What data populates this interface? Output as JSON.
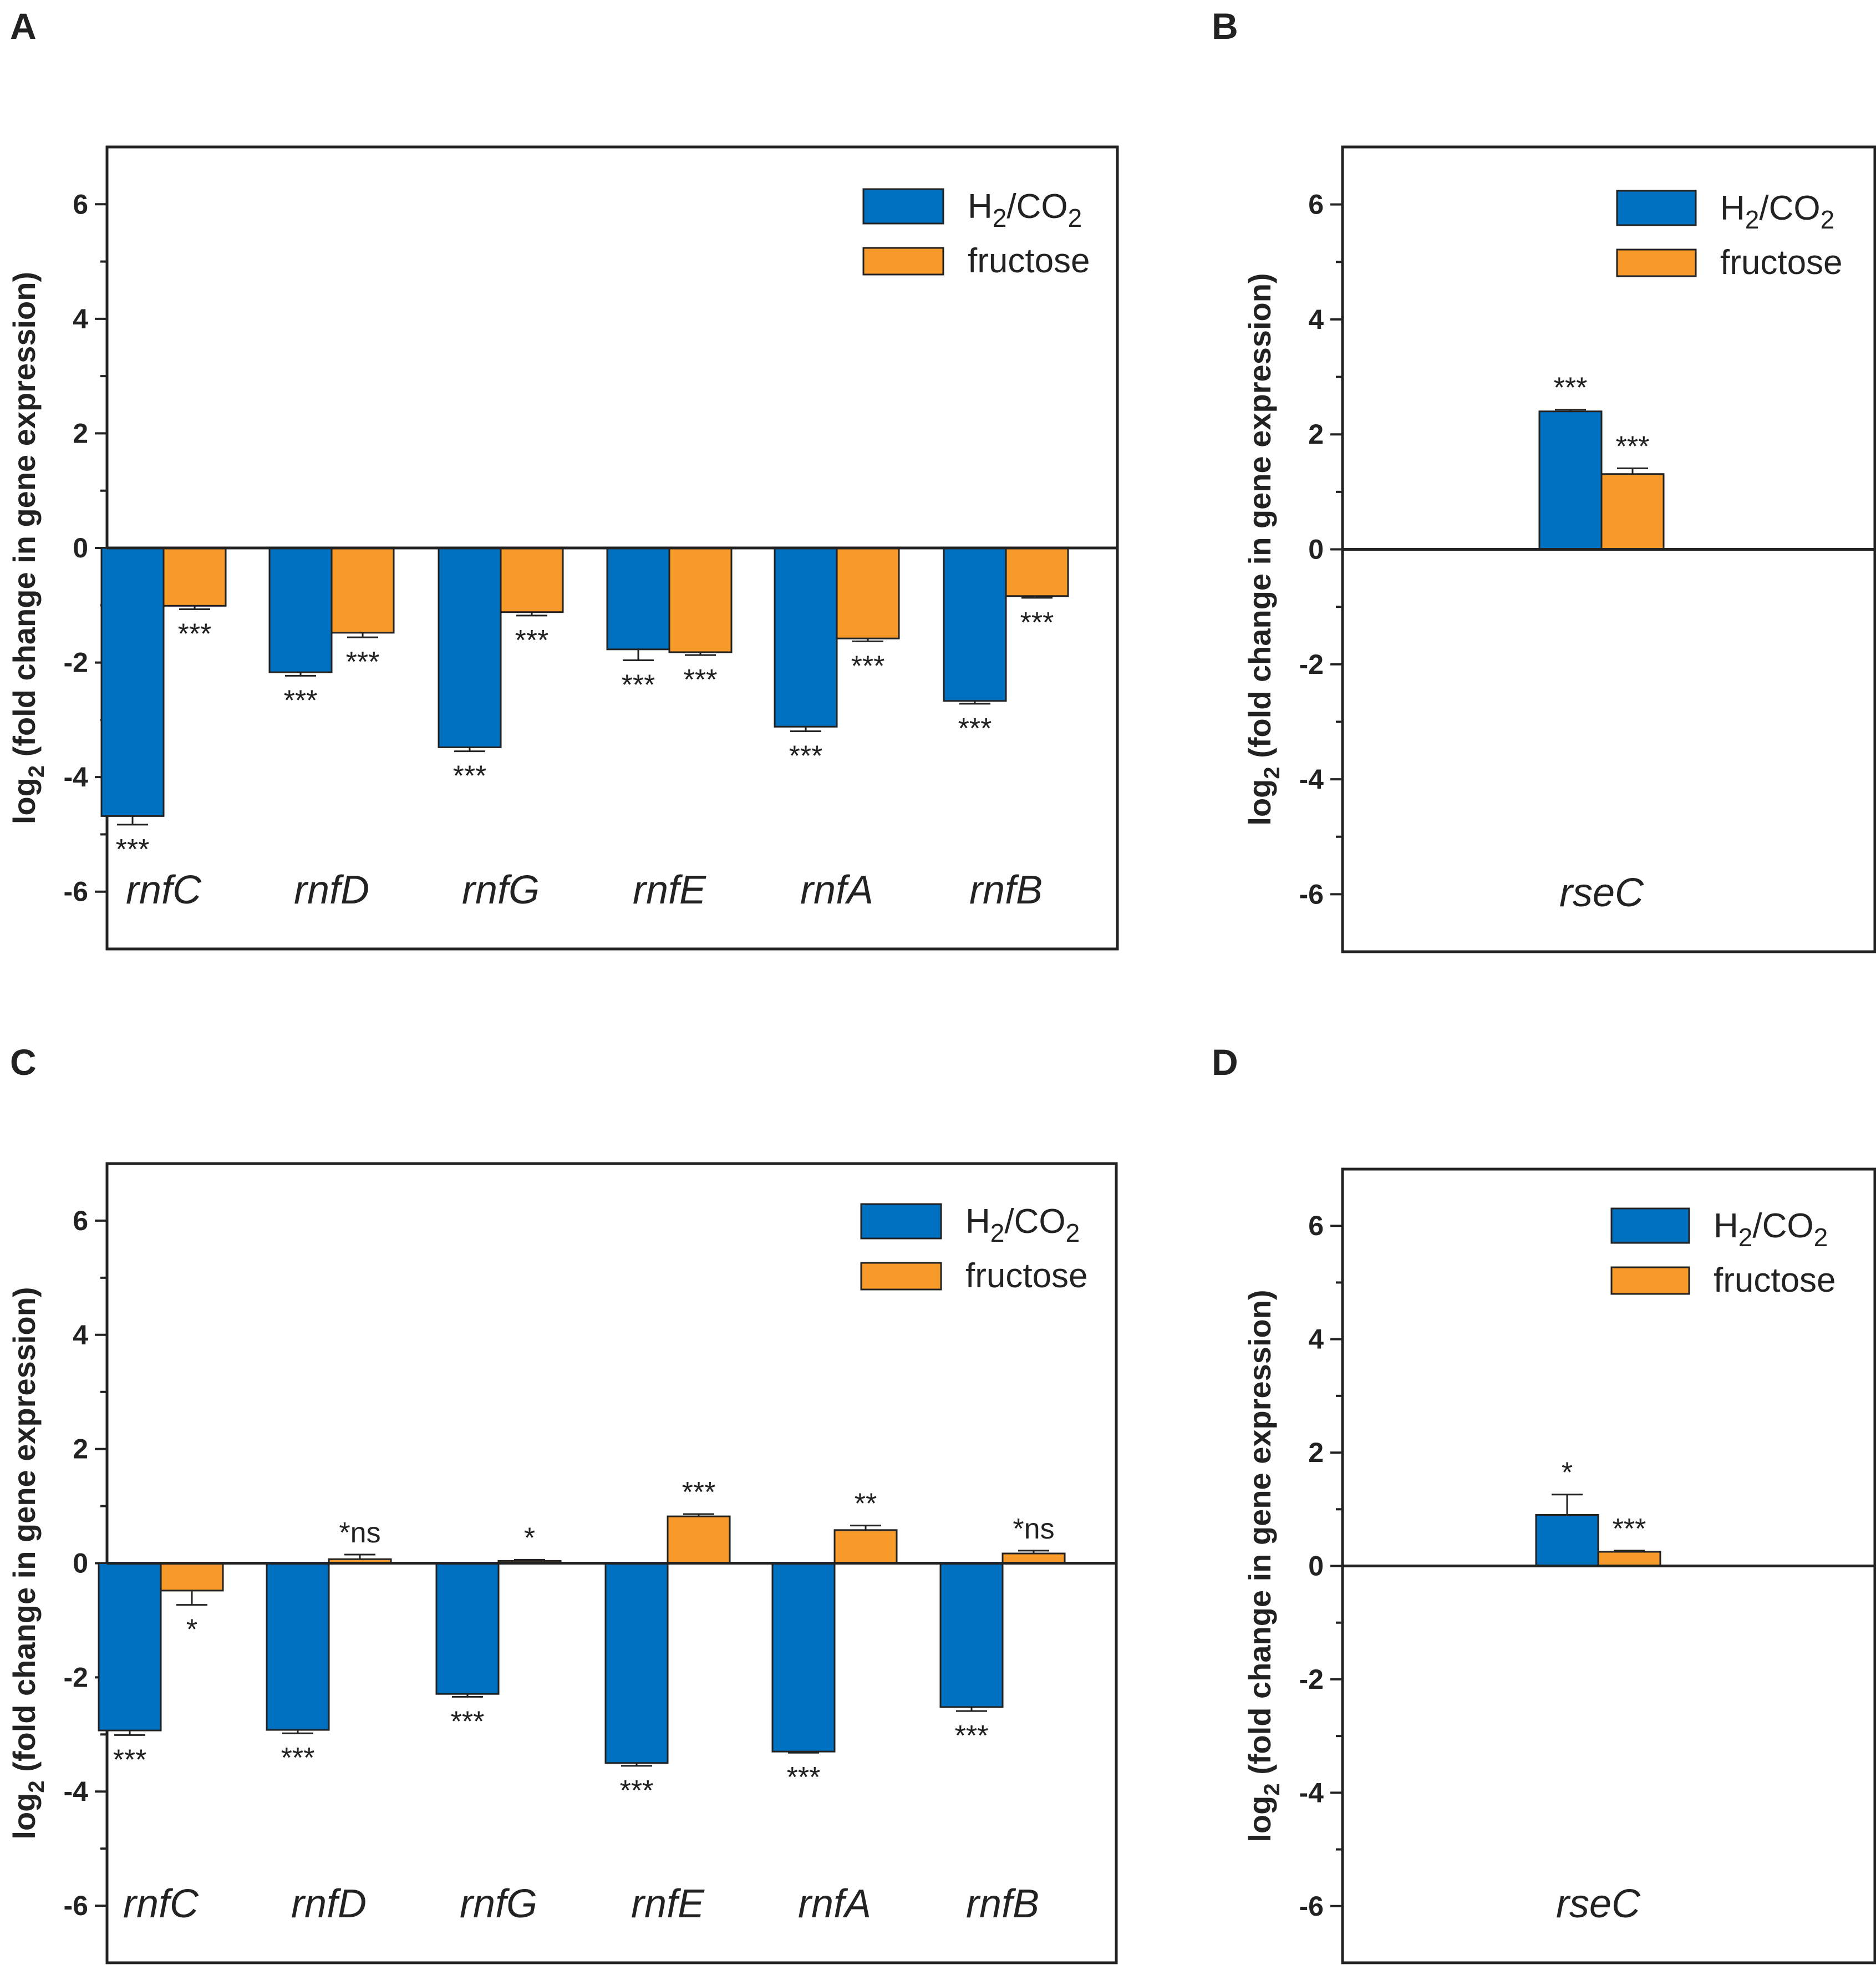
{
  "colors": {
    "h2co2": "#0070c0",
    "fructose": "#f79a2a",
    "axis": "#222222"
  },
  "chart_data": [
    {
      "panel": "A",
      "type": "bar",
      "ylabel_prefix": "log",
      "ylabel_sub": "2",
      "ylabel_rest": " (fold change in gene expression)",
      "ylim": [
        -7,
        7
      ],
      "yticks": [
        -6,
        -4,
        -2,
        0,
        2,
        4,
        6
      ],
      "categories": [
        "rnfC",
        "rnfD",
        "rnfG",
        "rnfE",
        "rnfA",
        "rnfB"
      ],
      "legend": {
        "h2_main": "H",
        "h2_sub1": "2",
        "h2_mid": "/CO",
        "h2_sub2": "2",
        "fructose": "fructose"
      },
      "series": [
        {
          "name": "H2/CO2",
          "values": [
            -4.68,
            -2.17,
            -3.48,
            -1.77,
            -3.12,
            -2.67
          ],
          "errors": [
            0.15,
            0.06,
            0.07,
            0.19,
            0.08,
            0.05
          ],
          "labels": [
            "***",
            "***",
            "***",
            "***",
            "***",
            "***"
          ]
        },
        {
          "name": "fructose",
          "values": [
            -1.01,
            -1.48,
            -1.12,
            -1.82,
            -1.58,
            -0.84
          ],
          "errors": [
            0.06,
            0.08,
            0.06,
            0.05,
            0.05,
            0.03
          ],
          "labels": [
            "***",
            "***",
            "***",
            "***",
            "***",
            "***"
          ]
        }
      ]
    },
    {
      "panel": "B",
      "type": "bar",
      "ylabel_prefix": "log",
      "ylabel_sub": "2",
      "ylabel_rest": " (fold change in gene expression)",
      "ylim": [
        -7,
        7
      ],
      "yticks": [
        -6,
        -4,
        -2,
        0,
        2,
        4,
        6
      ],
      "categories": [
        "rseC"
      ],
      "legend": {
        "h2_main": "H",
        "h2_sub1": "2",
        "h2_mid": "/CO",
        "h2_sub2": "2",
        "fructose": "fructose"
      },
      "series": [
        {
          "name": "H2/CO2",
          "values": [
            2.4
          ],
          "errors": [
            0.03
          ],
          "labels": [
            "***"
          ]
        },
        {
          "name": "fructose",
          "values": [
            1.31
          ],
          "errors": [
            0.1
          ],
          "labels": [
            "***"
          ]
        }
      ]
    },
    {
      "panel": "C",
      "type": "bar",
      "ylabel_prefix": "log",
      "ylabel_sub": "2",
      "ylabel_rest": " (fold change in gene expression)",
      "ylim": [
        -7,
        7
      ],
      "yticks": [
        -6,
        -4,
        -2,
        0,
        2,
        4,
        6
      ],
      "categories": [
        "rnfC",
        "rnfD",
        "rnfG",
        "rnfE",
        "rnfA",
        "rnfB"
      ],
      "legend": {
        "h2_main": "H",
        "h2_sub1": "2",
        "h2_mid": "/CO",
        "h2_sub2": "2",
        "fructose": "fructose"
      },
      "series": [
        {
          "name": "H2/CO2",
          "values": [
            -2.93,
            -2.92,
            -2.29,
            -3.5,
            -3.3,
            -2.52
          ],
          "errors": [
            0.08,
            0.06,
            0.05,
            0.05,
            0.02,
            0.07
          ],
          "labels": [
            "***",
            "***",
            "***",
            "***",
            "***",
            "***"
          ]
        },
        {
          "name": "fructose",
          "values": [
            -0.48,
            0.07,
            0.04,
            0.82,
            0.58,
            0.17
          ],
          "errors": [
            0.25,
            0.08,
            0.02,
            0.04,
            0.08,
            0.05
          ],
          "labels": [
            "*",
            "*ns",
            "*",
            "***",
            "**",
            "*ns"
          ]
        }
      ]
    },
    {
      "panel": "D",
      "type": "bar",
      "ylabel_prefix": "log",
      "ylabel_sub": "2",
      "ylabel_rest": " (fold change in gene expression)",
      "ylim": [
        -7,
        7
      ],
      "yticks": [
        -6,
        -4,
        -2,
        0,
        2,
        4,
        6
      ],
      "categories": [
        "rseC"
      ],
      "legend": {
        "h2_main": "H",
        "h2_sub1": "2",
        "h2_mid": "/CO",
        "h2_sub2": "2",
        "fructose": "fructose"
      },
      "series": [
        {
          "name": "H2/CO2",
          "values": [
            0.9
          ],
          "errors": [
            0.36
          ],
          "labels": [
            "*"
          ]
        },
        {
          "name": "fructose",
          "values": [
            0.25
          ],
          "errors": [
            0.02
          ],
          "labels": [
            "***"
          ]
        }
      ]
    }
  ]
}
